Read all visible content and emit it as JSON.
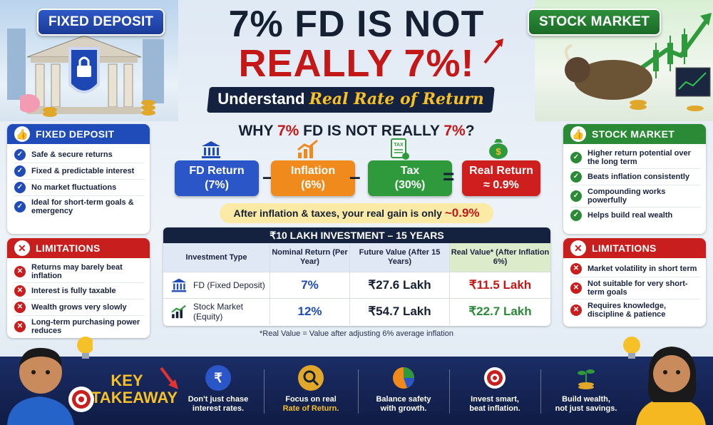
{
  "header": {
    "fd_badge": "FIXED DEPOSIT",
    "sm_badge": "STOCK MARKET",
    "title_line1": "7% FD IS NOT",
    "title_line2": "REALLY 7%!",
    "subtitle_pre": "Understand ",
    "subtitle_accent": "Real Rate of Return"
  },
  "left_panel": {
    "pros_title": "FIXED DEPOSIT",
    "pros": [
      "Safe & secure returns",
      "Fixed & predictable interest",
      "No market fluctuations",
      "Ideal for short-term goals & emergency"
    ],
    "cons_title": "LIMITATIONS",
    "cons": [
      "Returns may barely beat inflation",
      "Interest is fully taxable",
      "Wealth grows very slowly",
      "Long-term purchasing power reduces"
    ]
  },
  "right_panel": {
    "pros_title": "STOCK MARKET",
    "pros": [
      "Higher return potential over the long term",
      "Beats inflation consistently",
      "Compounding works powerfully",
      "Helps build real wealth"
    ],
    "cons_title": "LIMITATIONS",
    "cons": [
      "Market volatility in short term",
      "Not suitable for very short-term goals",
      "Requires knowledge, discipline & patience"
    ]
  },
  "why": {
    "pre": "WHY ",
    "r1": "7%",
    "mid": " FD IS NOT REALLY ",
    "r2": "7%",
    "post": "?"
  },
  "equation": {
    "fd": {
      "label": "FD Return",
      "value": "(7%)",
      "color": "#2a56c8"
    },
    "inflation": {
      "label": "Inflation",
      "value": "(6%)",
      "color": "#f08a1d"
    },
    "tax": {
      "label": "Tax",
      "value": "(30%)",
      "color": "#2e9a3c"
    },
    "real": {
      "label": "Real Return",
      "value": "≈ 0.9%",
      "color": "#cf1e1e"
    },
    "minus": "–",
    "equals": "=",
    "tax_icon_text": "TAX"
  },
  "gain": {
    "text": "After inflation & taxes, your real gain is only ",
    "value": "~0.9%"
  },
  "table": {
    "title": "₹10 LAKH INVESTMENT – 15 YEARS",
    "headers": [
      "Investment Type",
      "Nominal Return (Per Year)",
      "Future Value (After 15 Years)",
      "Real Value* (After Inflation 6%)"
    ],
    "rows": [
      {
        "type": "FD (Fixed Deposit)",
        "type_sub": "",
        "nominal": "7%",
        "future": "₹27.6 Lakh",
        "real": "₹11.5 Lakh"
      },
      {
        "type": "Stock Market",
        "type_sub": "(Equity)",
        "nominal": "12%",
        "future": "₹54.7 Lakh",
        "real": "₹22.7 Lakh"
      }
    ],
    "note": "*Real Value = Value after adjusting 6% average inflation"
  },
  "takeaway": {
    "title_line1": "KEY",
    "title_line2": "TAKEAWAY",
    "items": [
      {
        "line1": "Don't just chase",
        "line2": "interest rates.",
        "accent": false
      },
      {
        "line1": "Focus on real",
        "line2": "Rate of Return.",
        "accent": true
      },
      {
        "line1": "Balance safety",
        "line2": "with growth.",
        "accent": false
      },
      {
        "line1": "Invest smart,",
        "line2": "beat inflation.",
        "accent": false
      },
      {
        "line1": "Build wealth,",
        "line2": "not just savings.",
        "accent": false
      }
    ],
    "rupee_symbol": "₹"
  }
}
